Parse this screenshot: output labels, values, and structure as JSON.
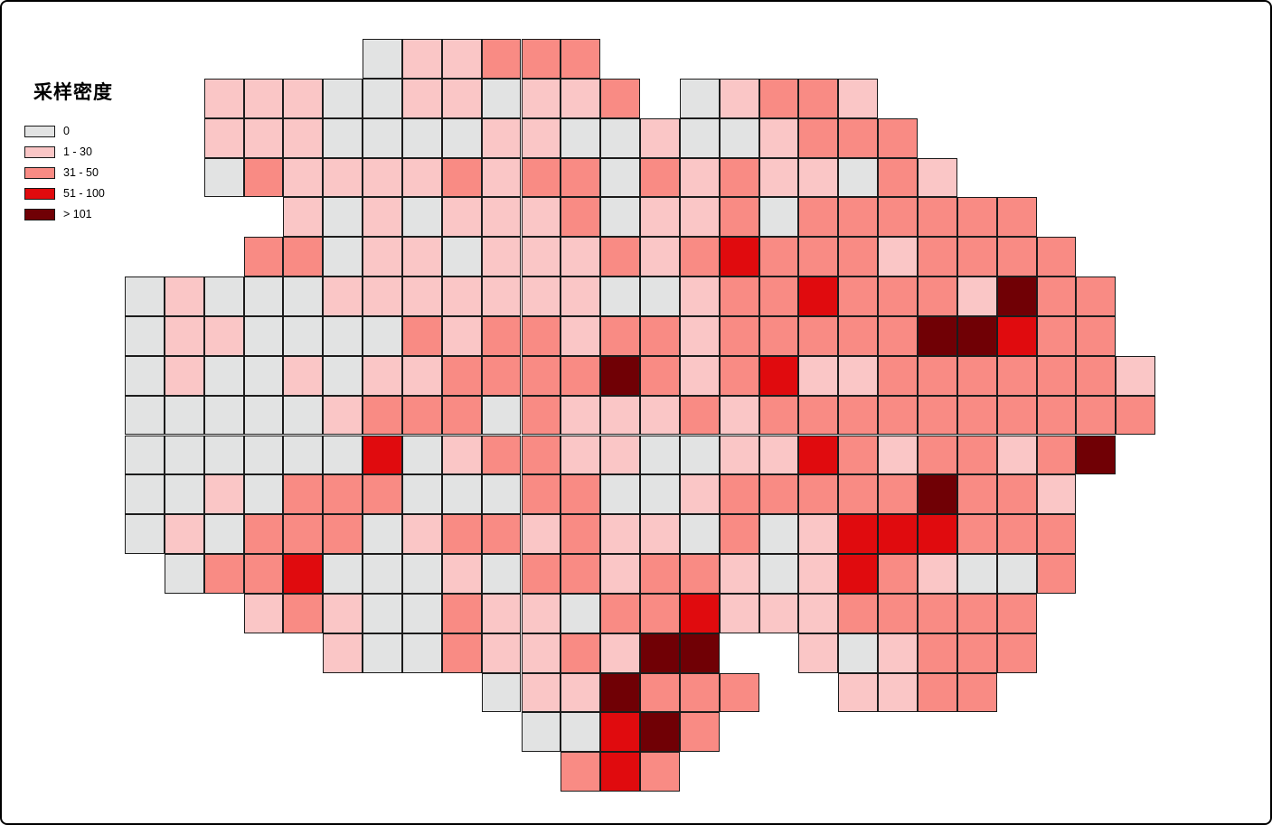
{
  "legend": {
    "title": "采样密度",
    "items": [
      {
        "label": "0",
        "color": "#e2e3e3"
      },
      {
        "label": "1 - 30",
        "color": "#fac6c6"
      },
      {
        "label": "31 - 50",
        "color": "#f98b84"
      },
      {
        "label": "51 - 100",
        "color": "#e00b0e"
      },
      {
        "label": "> 101",
        "color": "#700005"
      }
    ]
  },
  "chart_data": {
    "type": "heatmap",
    "title": "采样密度",
    "legend_position": "top-left",
    "classes": [
      "0",
      "1 - 30",
      "31 - 50",
      "51 - 100",
      "> 101"
    ],
    "colors": [
      "#e2e3e3",
      "#fac6c6",
      "#f98b84",
      "#e00b0e",
      "#700005"
    ],
    "grid_rows": 19,
    "grid_cols": 26,
    "grid_encoding": "one character per column: '.'=no cell, '0'=class 0, '1'=class 1-30, '2'=class 31-50, '3'=class 51-100, '4'=class >101",
    "grid": [
      "......011222..............",
      "..11100110112.01221.......",
      "..111000011001001222......",
      "..0211112122021211021.....",
      "....1010111201120222222...",
      "...220110111212322212222..",
      "0100011111110012232221422.",
      "0110000212212212222244322.",
      "01001011222242123112222221",
      "00000122202111212222222222",
      "0000003012211001132122124.",
      "001022200022001222224221..",
      "010222012212110201333222..",
      ".02230001022122101321002..",
      "...12100211022311122222...",
      ".....1002112144..101222...",
      ".........0114222..1122....",
      "..........00342...........",
      "...........232............"
    ]
  }
}
